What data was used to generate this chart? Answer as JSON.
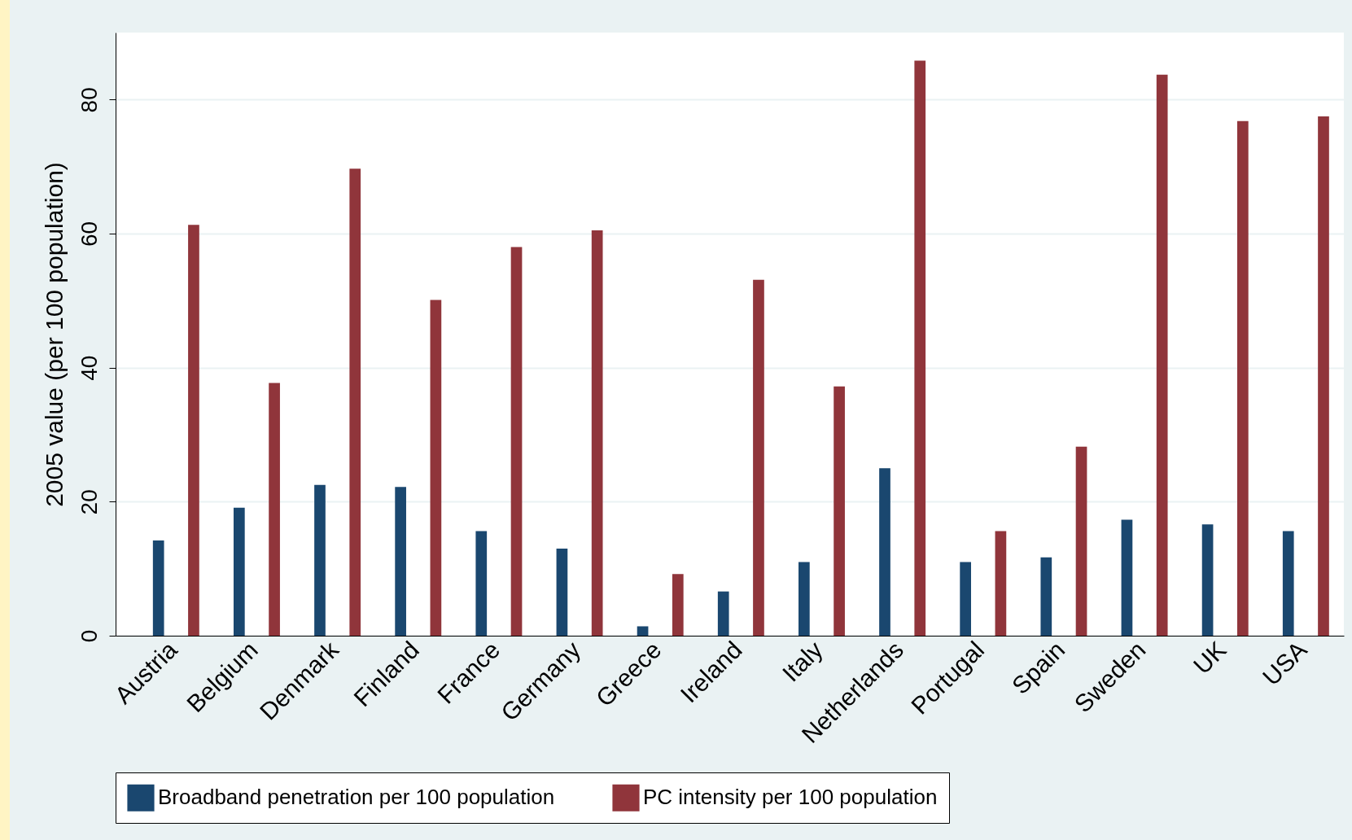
{
  "chart_data": {
    "type": "bar",
    "ylabel": "2005 value (per 100 population)",
    "categories": [
      "Austria",
      "Belgium",
      "Denmark",
      "Finland",
      "France",
      "Germany",
      "Greece",
      "Ireland",
      "Italy",
      "Netherlands",
      "Portugal",
      "Spain",
      "Sweden",
      "UK",
      "USA"
    ],
    "series": [
      {
        "name": "Broadband penetration per 100 population",
        "color": "#1a476f",
        "values": [
          14.2,
          19.1,
          22.5,
          22.2,
          15.6,
          13.0,
          1.4,
          6.6,
          11.0,
          25.0,
          11.0,
          11.7,
          17.3,
          16.6,
          15.6
        ]
      },
      {
        "name": "PC intensity per 100 population",
        "color": "#90353b",
        "values": [
          61.3,
          37.7,
          69.7,
          50.1,
          58.0,
          60.5,
          9.2,
          53.1,
          37.2,
          85.8,
          15.6,
          28.2,
          83.7,
          76.8,
          77.5
        ]
      }
    ],
    "ylim": [
      0,
      90
    ],
    "yticks": [
      0,
      20,
      40,
      60,
      80
    ],
    "grid": "y",
    "legend": "bottom"
  }
}
